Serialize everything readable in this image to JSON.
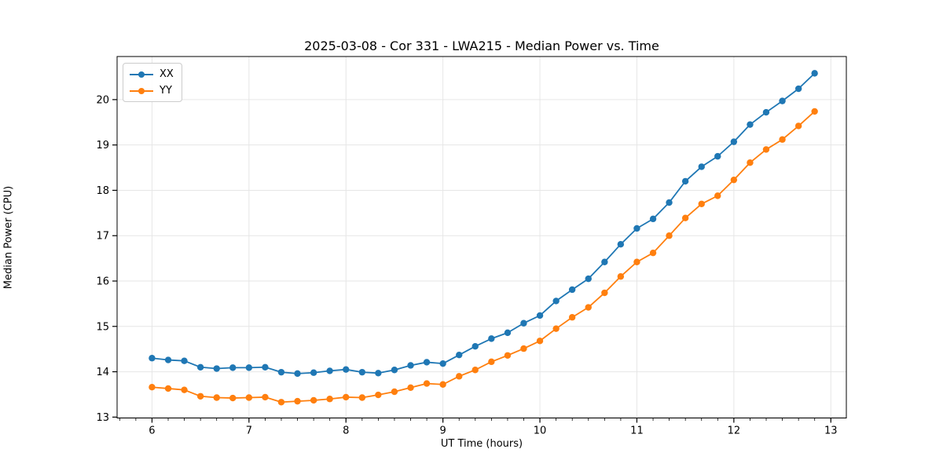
{
  "chart_data": {
    "type": "line",
    "title": "2025-03-08 - Cor 331 - LWA215 - Median Power vs. Time",
    "xlabel": "UT Time (hours)",
    "ylabel": "Median Power (CPU)",
    "xlim": [
      5.64,
      13.16
    ],
    "ylim": [
      12.98,
      20.95
    ],
    "xticks": [
      6,
      7,
      8,
      9,
      10,
      11,
      12,
      13
    ],
    "yticks": [
      13,
      14,
      15,
      16,
      17,
      18,
      19,
      20
    ],
    "x_minor_step": 0.16667,
    "grid": true,
    "grid_color": "#e6e6e6",
    "legend_position": "upper-left",
    "x": [
      6.0,
      6.167,
      6.333,
      6.5,
      6.667,
      6.833,
      7.0,
      7.167,
      7.333,
      7.5,
      7.667,
      7.833,
      8.0,
      8.167,
      8.333,
      8.5,
      8.667,
      8.833,
      9.0,
      9.167,
      9.333,
      9.5,
      9.667,
      9.833,
      10.0,
      10.167,
      10.333,
      10.5,
      10.667,
      10.833,
      11.0,
      11.167,
      11.333,
      11.5,
      11.667,
      11.833,
      12.0,
      12.167,
      12.333,
      12.5,
      12.667,
      12.833
    ],
    "series": [
      {
        "name": "XX",
        "color": "#1f77b4",
        "values": [
          14.3,
          14.26,
          14.24,
          14.1,
          14.07,
          14.09,
          14.09,
          14.1,
          13.99,
          13.96,
          13.98,
          14.02,
          14.05,
          13.99,
          13.97,
          14.04,
          14.14,
          14.21,
          14.18,
          14.37,
          14.56,
          14.73,
          14.86,
          15.07,
          15.24,
          15.56,
          15.81,
          16.05,
          16.42,
          16.81,
          17.16,
          17.37,
          17.73,
          18.2,
          18.52,
          18.75,
          19.07,
          19.45,
          19.72,
          19.97,
          20.24,
          20.58
        ]
      },
      {
        "name": "YY",
        "color": "#ff7f0e",
        "values": [
          13.66,
          13.63,
          13.6,
          13.46,
          13.43,
          13.42,
          13.43,
          13.44,
          13.33,
          13.35,
          13.37,
          13.4,
          13.44,
          13.43,
          13.49,
          13.56,
          13.65,
          13.74,
          13.72,
          13.9,
          14.04,
          14.22,
          14.36,
          14.51,
          14.68,
          14.95,
          15.2,
          15.42,
          15.74,
          16.1,
          16.42,
          16.62,
          17.0,
          17.39,
          17.7,
          17.88,
          18.23,
          18.61,
          18.9,
          19.12,
          19.42,
          19.74
        ]
      }
    ]
  }
}
